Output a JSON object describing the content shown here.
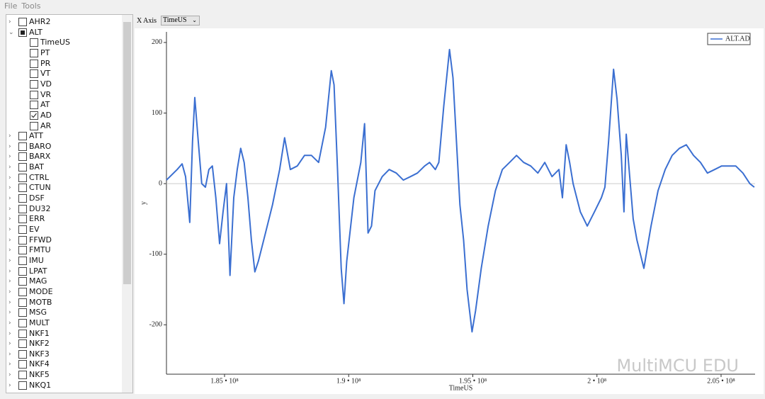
{
  "menu": [
    "File",
    "Tools"
  ],
  "tree": {
    "items": [
      {
        "label": "AHR2",
        "state": "unchecked",
        "expandable": true,
        "expanded": false
      },
      {
        "label": "ALT",
        "state": "partial",
        "expandable": true,
        "expanded": true,
        "children": [
          {
            "label": "TimeUS",
            "state": "unchecked"
          },
          {
            "label": "PT",
            "state": "unchecked"
          },
          {
            "label": "PR",
            "state": "unchecked"
          },
          {
            "label": "VT",
            "state": "unchecked"
          },
          {
            "label": "VD",
            "state": "unchecked"
          },
          {
            "label": "VR",
            "state": "unchecked"
          },
          {
            "label": "AT",
            "state": "unchecked"
          },
          {
            "label": "AD",
            "state": "checked"
          },
          {
            "label": "AR",
            "state": "unchecked"
          }
        ]
      },
      {
        "label": "ATT",
        "state": "unchecked",
        "expandable": true,
        "expanded": false
      },
      {
        "label": "BARO",
        "state": "unchecked",
        "expandable": true,
        "expanded": false
      },
      {
        "label": "BARX",
        "state": "unchecked",
        "expandable": true,
        "expanded": false
      },
      {
        "label": "BAT",
        "state": "unchecked",
        "expandable": true,
        "expanded": false
      },
      {
        "label": "CTRL",
        "state": "unchecked",
        "expandable": true,
        "expanded": false
      },
      {
        "label": "CTUN",
        "state": "unchecked",
        "expandable": true,
        "expanded": false
      },
      {
        "label": "DSF",
        "state": "unchecked",
        "expandable": true,
        "expanded": false
      },
      {
        "label": "DU32",
        "state": "unchecked",
        "expandable": true,
        "expanded": false
      },
      {
        "label": "ERR",
        "state": "unchecked",
        "expandable": true,
        "expanded": false
      },
      {
        "label": "EV",
        "state": "unchecked",
        "expandable": true,
        "expanded": false
      },
      {
        "label": "FFWD",
        "state": "unchecked",
        "expandable": true,
        "expanded": false
      },
      {
        "label": "FMTU",
        "state": "unchecked",
        "expandable": true,
        "expanded": false
      },
      {
        "label": "IMU",
        "state": "unchecked",
        "expandable": true,
        "expanded": false
      },
      {
        "label": "LPAT",
        "state": "unchecked",
        "expandable": true,
        "expanded": false
      },
      {
        "label": "MAG",
        "state": "unchecked",
        "expandable": true,
        "expanded": false
      },
      {
        "label": "MODE",
        "state": "unchecked",
        "expandable": true,
        "expanded": false
      },
      {
        "label": "MOTB",
        "state": "unchecked",
        "expandable": true,
        "expanded": false
      },
      {
        "label": "MSG",
        "state": "unchecked",
        "expandable": true,
        "expanded": false
      },
      {
        "label": "MULT",
        "state": "unchecked",
        "expandable": true,
        "expanded": false
      },
      {
        "label": "NKF1",
        "state": "unchecked",
        "expandable": true,
        "expanded": false
      },
      {
        "label": "NKF2",
        "state": "unchecked",
        "expandable": true,
        "expanded": false
      },
      {
        "label": "NKF3",
        "state": "unchecked",
        "expandable": true,
        "expanded": false
      },
      {
        "label": "NKF4",
        "state": "unchecked",
        "expandable": true,
        "expanded": false
      },
      {
        "label": "NKF5",
        "state": "unchecked",
        "expandable": true,
        "expanded": false
      },
      {
        "label": "NKQ1",
        "state": "unchecked",
        "expandable": true,
        "expanded": false
      }
    ]
  },
  "x_axis_label": "X Axis",
  "x_axis_select": "TimeUS",
  "watermark": "MultiMCU EDU",
  "chart_data": {
    "type": "line",
    "x_label": "TimeUS",
    "y_label": "y",
    "x": [
      182660000,
      183090000,
      183290000,
      183430000,
      183600000,
      183710000,
      183800000,
      183940000,
      184080000,
      184230000,
      184370000,
      184510000,
      184650000,
      184800000,
      184940000,
      185080000,
      185220000,
      185370000,
      185510000,
      185650000,
      185790000,
      185940000,
      186080000,
      186220000,
      186360000,
      186650000,
      186930000,
      187220000,
      187420000,
      187650000,
      187930000,
      188220000,
      188500000,
      188790000,
      189070000,
      189300000,
      189410000,
      189550000,
      189700000,
      189810000,
      189920000,
      190210000,
      190490000,
      190640000,
      190780000,
      190920000,
      191060000,
      191350000,
      191630000,
      191920000,
      192200000,
      192490000,
      192770000,
      193060000,
      193260000,
      193490000,
      193630000,
      193830000,
      194060000,
      194200000,
      194340000,
      194480000,
      194630000,
      194770000,
      194970000,
      195110000,
      195340000,
      195620000,
      195910000,
      196190000,
      196480000,
      196760000,
      197050000,
      197330000,
      197620000,
      197900000,
      198190000,
      198470000,
      198610000,
      198760000,
      198900000,
      199040000,
      199330000,
      199610000,
      199900000,
      200180000,
      200320000,
      200470000,
      200670000,
      200810000,
      200980000,
      201090000,
      201180000,
      201320000,
      201460000,
      201610000,
      201890000,
      202180000,
      202460000,
      202750000,
      203030000,
      203320000,
      203600000,
      203890000,
      204170000,
      204450000,
      204740000,
      205020000,
      205310000,
      205590000,
      205880000,
      206160000,
      206340000
    ],
    "series": [
      {
        "name": "ALT.AD",
        "color": "#3b6fd1",
        "values": [
          5,
          20,
          28,
          10,
          -55,
          60,
          122,
          60,
          0,
          -5,
          20,
          25,
          -20,
          -85,
          -40,
          0,
          -130,
          -20,
          20,
          50,
          30,
          -20,
          -80,
          -125,
          -110,
          -70,
          -30,
          20,
          65,
          20,
          25,
          40,
          40,
          30,
          80,
          160,
          140,
          20,
          -120,
          -170,
          -110,
          -20,
          30,
          85,
          -70,
          -60,
          -10,
          10,
          20,
          15,
          5,
          10,
          15,
          25,
          30,
          20,
          30,
          110,
          190,
          150,
          60,
          -30,
          -80,
          -150,
          -210,
          -180,
          -120,
          -60,
          -10,
          20,
          30,
          40,
          30,
          25,
          15,
          30,
          10,
          20,
          -20,
          55,
          30,
          0,
          -40,
          -60,
          -40,
          -20,
          -5,
          60,
          162,
          120,
          40,
          -40,
          70,
          10,
          -50,
          -80,
          -120,
          -60,
          -10,
          20,
          40,
          50,
          55,
          40,
          30,
          15,
          20,
          25,
          25,
          25,
          15,
          0,
          -5
        ]
      }
    ],
    "xlim": [
      182660000,
      206370000
    ],
    "ylim": [
      -270,
      215
    ],
    "xticks": [
      {
        "value": 185000000,
        "label": "1.85 • 10⁸"
      },
      {
        "value": 190000000,
        "label": "1.9 • 10⁸"
      },
      {
        "value": 195000000,
        "label": "1.95 • 10⁸"
      },
      {
        "value": 200000000,
        "label": "2 • 10⁸"
      },
      {
        "value": 205000000,
        "label": "2.05 • 10⁸"
      }
    ],
    "yticks": [
      -200,
      -100,
      0,
      100,
      200
    ],
    "zero_line": true,
    "legend": "top-right"
  }
}
